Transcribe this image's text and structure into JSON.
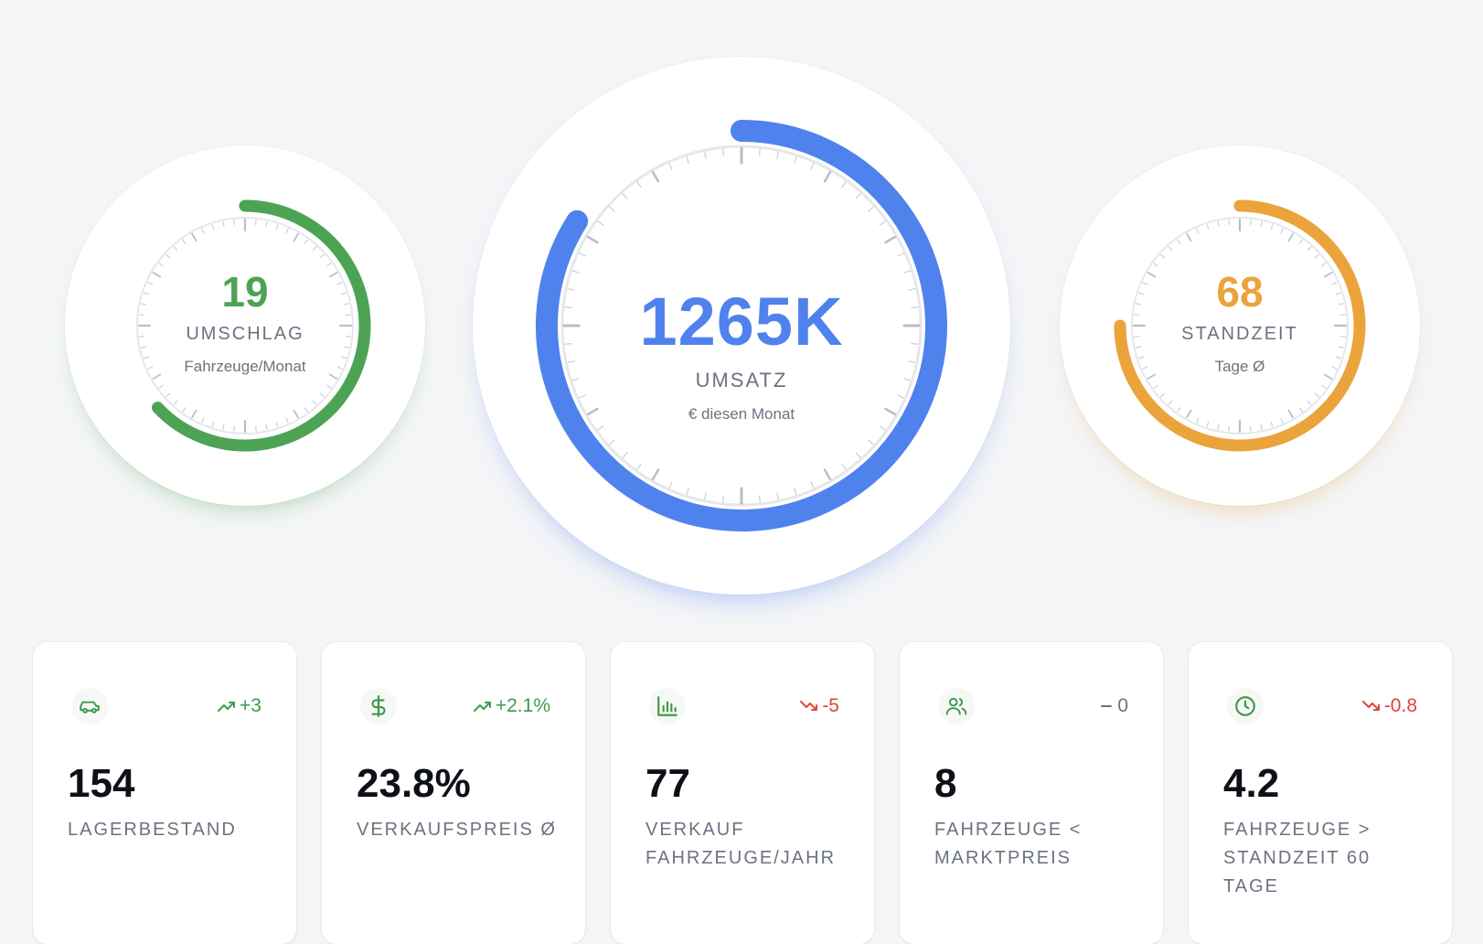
{
  "gauges": {
    "umschlag": {
      "value": "19",
      "label": "UMSCHLAG",
      "sub": "Fahrzeuge/Monat",
      "color": "#4ca354",
      "level": 0.63
    },
    "umsatz": {
      "value": "1265K",
      "label": "UMSATZ",
      "sub": "€ diesen Monat",
      "color": "#5082ee",
      "level": 0.84
    },
    "standzeit": {
      "value": "68",
      "label": "STANDZEIT",
      "sub": "Tage Ø",
      "color": "#eba33c",
      "level": 0.75
    }
  },
  "cards": [
    {
      "value": "154",
      "label": "LAGERBESTAND",
      "trend": "+3",
      "trend_dir": "up",
      "icon": "car-icon"
    },
    {
      "value": "23.8%",
      "label": "VERKAUFSPREIS Ø",
      "trend": "+2.1%",
      "trend_dir": "up",
      "icon": "dollar-icon"
    },
    {
      "value": "77",
      "label": "VERKAUF FAHRZEUGE/JAHR",
      "trend": "-5",
      "trend_dir": "down",
      "icon": "bar-chart-icon"
    },
    {
      "value": "8",
      "label": "FAHRZEUGE < MARKTPREIS",
      "trend": "0",
      "trend_dir": "flat",
      "icon": "users-icon"
    },
    {
      "value": "4.2",
      "label": "FAHRZEUGE > STANDZEIT 60 TAGE",
      "trend": "-0.8",
      "trend_dir": "down",
      "icon": "clock-icon"
    }
  ],
  "colors": {
    "up": "#3f9a4a",
    "down": "#e0443a",
    "flat": "#6b7280",
    "icon_green": "#3f9a4a"
  }
}
